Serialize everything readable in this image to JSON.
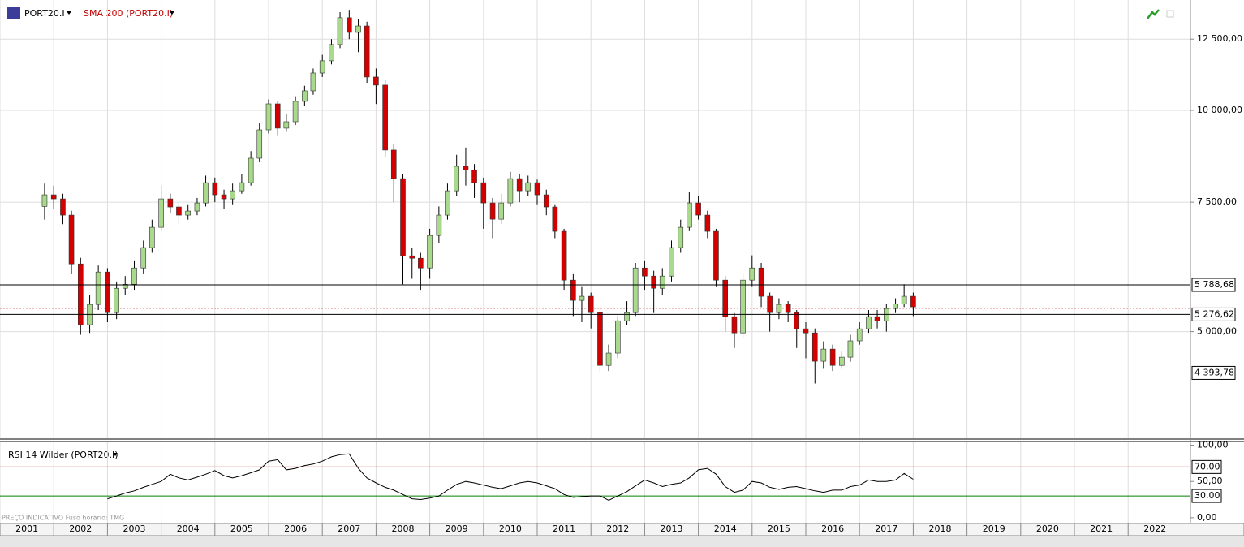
{
  "chart_data": [
    {
      "type": "candlestick",
      "title": "PORT20.I",
      "subtitle": "SMA 200 (PORT20.I)",
      "log": true,
      "grid": true,
      "xlim": [
        2001,
        2023.16
      ],
      "xticks": [
        2001,
        2002,
        2003,
        2004,
        2005,
        2006,
        2007,
        2008,
        2009,
        2010,
        2011,
        2012,
        2013,
        2014,
        2015,
        2016,
        2017,
        2018,
        2019,
        2020,
        2021,
        2022
      ],
      "ylim": [
        3580,
        14130
      ],
      "yticks": [
        {
          "value": 12500,
          "label": "12 500,00"
        },
        {
          "value": 10000,
          "label": "10 000,00"
        },
        {
          "value": 7500,
          "label": "7 500,00"
        },
        {
          "value": 5000,
          "label": "5 000,00"
        }
      ],
      "levels": [
        {
          "value": 5788.68,
          "label": "5 788,68"
        },
        {
          "value": 5276.62,
          "label": "5 276,62"
        },
        {
          "value": 4393.78,
          "label": "4 393,78"
        }
      ],
      "price_line": 5380,
      "up_color": "#a9d98c",
      "down_color": "#d40000",
      "x": [
        2001.83,
        2002,
        2002.17,
        2002.33,
        2002.5,
        2002.67,
        2002.83,
        2003,
        2003.17,
        2003.33,
        2003.5,
        2003.67,
        2003.83,
        2004,
        2004.17,
        2004.33,
        2004.5,
        2004.67,
        2004.83,
        2005,
        2005.17,
        2005.33,
        2005.5,
        2005.67,
        2005.83,
        2006,
        2006.17,
        2006.33,
        2006.5,
        2006.67,
        2006.83,
        2007,
        2007.17,
        2007.33,
        2007.5,
        2007.67,
        2007.83,
        2008,
        2008.17,
        2008.33,
        2008.5,
        2008.67,
        2008.83,
        2009,
        2009.17,
        2009.33,
        2009.5,
        2009.67,
        2009.83,
        2010,
        2010.17,
        2010.33,
        2010.5,
        2010.67,
        2010.83,
        2011,
        2011.17,
        2011.33,
        2011.5,
        2011.67,
        2011.83,
        2012,
        2012.17,
        2012.33,
        2012.5,
        2012.67,
        2012.83,
        2013,
        2013.17,
        2013.33,
        2013.5,
        2013.67,
        2013.83,
        2014,
        2014.17,
        2014.33,
        2014.5,
        2014.67,
        2014.83,
        2015,
        2015.17,
        2015.33,
        2015.5,
        2015.67,
        2015.83,
        2016,
        2016.17,
        2016.33,
        2016.5,
        2016.67,
        2016.83,
        2017,
        2017.17,
        2017.33,
        2017.5,
        2017.67,
        2017.83,
        2018
      ],
      "open": [
        7400,
        7675,
        7578,
        7202,
        6181,
        5109,
        5444,
        6026,
        5307,
        5727,
        5799,
        6103,
        6505,
        6932,
        7578,
        7388,
        7202,
        7294,
        7482,
        7972,
        7675,
        7578,
        7772,
        7972,
        8607,
        9407,
        10205,
        9457,
        9650,
        10285,
        10630,
        11240,
        11680,
        12289,
        13366,
        12765,
        13025,
        11100,
        10822,
        8830,
        8074,
        6340,
        6292,
        6103,
        6757,
        7202,
        7772,
        8391,
        8300,
        7972,
        7482,
        7110,
        7482,
        8074,
        7772,
        7972,
        7675,
        7388,
        6845,
        5875,
        5514,
        5585,
        5307,
        4498,
        4675,
        5173,
        5307,
        6103,
        5950,
        5727,
        5950,
        6505,
        6932,
        7482,
        7202,
        6845,
        5875,
        5240,
        4980,
        5875,
        6103,
        5585,
        5307,
        5444,
        5307,
        5044,
        4980,
        4557,
        4734,
        4498,
        4615,
        4857,
        5044,
        5240,
        5173,
        5375,
        5450,
        5585
      ],
      "high": [
        7950,
        7900,
        7700,
        7300,
        6300,
        5600,
        6150,
        6100,
        5850,
        5950,
        6250,
        6650,
        7100,
        7900,
        7700,
        7500,
        7450,
        7600,
        8150,
        8100,
        7800,
        7950,
        8200,
        8800,
        9600,
        10350,
        10300,
        9900,
        10450,
        10800,
        11400,
        11900,
        12500,
        13600,
        13700,
        13300,
        13200,
        11400,
        11000,
        9000,
        8200,
        6500,
        6400,
        6900,
        7400,
        7950,
        8700,
        8900,
        8450,
        8100,
        7600,
        7700,
        8250,
        8200,
        8150,
        8050,
        7800,
        7450,
        6900,
        6000,
        5750,
        5650,
        5400,
        4800,
        5250,
        5500,
        6200,
        6250,
        6050,
        6100,
        6650,
        7100,
        7750,
        7650,
        7300,
        6900,
        5950,
        5300,
        6000,
        6350,
        6200,
        5650,
        5550,
        5500,
        5350,
        5150,
        5050,
        4850,
        4800,
        4700,
        4950,
        5150,
        5350,
        5350,
        5450,
        5550,
        5800,
        5650
      ],
      "low": [
        7100,
        7350,
        7000,
        6000,
        4950,
        4980,
        5350,
        5150,
        5200,
        5600,
        5700,
        6000,
        6400,
        6850,
        7250,
        7000,
        7100,
        7200,
        7400,
        7500,
        7350,
        7450,
        7700,
        7900,
        8500,
        9300,
        9250,
        9350,
        9550,
        10150,
        10500,
        11100,
        11550,
        12150,
        12500,
        12000,
        10900,
        10200,
        8650,
        7500,
        5800,
        5900,
        5700,
        5900,
        6600,
        7100,
        7650,
        7900,
        7600,
        6900,
        6700,
        7000,
        7400,
        7500,
        7650,
        7450,
        7200,
        6700,
        5700,
        5250,
        5150,
        5050,
        4400,
        4420,
        4600,
        5100,
        5250,
        5700,
        5300,
        5600,
        5850,
        6400,
        6850,
        7100,
        6700,
        5750,
        5000,
        4750,
        4900,
        5750,
        5400,
        5000,
        5200,
        5150,
        4750,
        4600,
        4250,
        4450,
        4420,
        4450,
        4550,
        4800,
        4980,
        5050,
        5000,
        5300,
        5400,
        5250
      ],
      "close": [
        7675,
        7578,
        7202,
        6181,
        5109,
        5444,
        6026,
        5307,
        5727,
        5799,
        6103,
        6505,
        6932,
        7578,
        7388,
        7202,
        7294,
        7482,
        7972,
        7675,
        7578,
        7772,
        7972,
        8607,
        9407,
        10205,
        9457,
        9650,
        10285,
        10630,
        11240,
        11680,
        12289,
        13366,
        12765,
        13025,
        11100,
        10822,
        8830,
        8074,
        6340,
        6292,
        6103,
        6757,
        7202,
        7772,
        8391,
        8300,
        7972,
        7482,
        7110,
        7482,
        8074,
        7772,
        7972,
        7675,
        7388,
        6845,
        5875,
        5514,
        5585,
        5307,
        4498,
        4675,
        5173,
        5307,
        6103,
        5950,
        5727,
        5950,
        6505,
        6932,
        7482,
        7202,
        6845,
        5875,
        5240,
        4980,
        5875,
        6103,
        5585,
        5307,
        5444,
        5307,
        5044,
        4980,
        4557,
        4734,
        4498,
        4615,
        4857,
        5044,
        5240,
        5173,
        5375,
        5450,
        5585,
        5403
      ],
      "footnote": "PREÇO INDICATIVO   Fuso horário: TMG"
    },
    {
      "type": "line",
      "title": "RSI 14 Wilder (PORT20.I)",
      "color": "#000000",
      "ylim": [
        -8,
        104
      ],
      "yticks": [
        {
          "value": 100,
          "label": "100,00"
        },
        {
          "value": 50,
          "label": "50,00"
        },
        {
          "value": 0,
          "label": "0,00"
        }
      ],
      "levels": [
        {
          "value": 70,
          "label": "70,00",
          "color": "#c00000"
        },
        {
          "value": 30,
          "label": "30,00",
          "color": "#008000"
        }
      ],
      "values": [
        null,
        null,
        null,
        null,
        null,
        null,
        null,
        26,
        30,
        34,
        37,
        42,
        46,
        50,
        60,
        55,
        52,
        56,
        60,
        65,
        58,
        55,
        58,
        62,
        66,
        78,
        80,
        66,
        68,
        72,
        74,
        78,
        84,
        87,
        88,
        68,
        55,
        48,
        42,
        38,
        32,
        26,
        25,
        27,
        30,
        38,
        46,
        50,
        48,
        45,
        42,
        40,
        44,
        48,
        50,
        48,
        44,
        40,
        32,
        28,
        29,
        30,
        30,
        24,
        30,
        36,
        44,
        52,
        48,
        43,
        46,
        48,
        55,
        66,
        68,
        60,
        43,
        35,
        38,
        50,
        48,
        42,
        39,
        42,
        43,
        40,
        37,
        35,
        38,
        38,
        43,
        45,
        52,
        50,
        50,
        52,
        61,
        53
      ]
    }
  ]
}
